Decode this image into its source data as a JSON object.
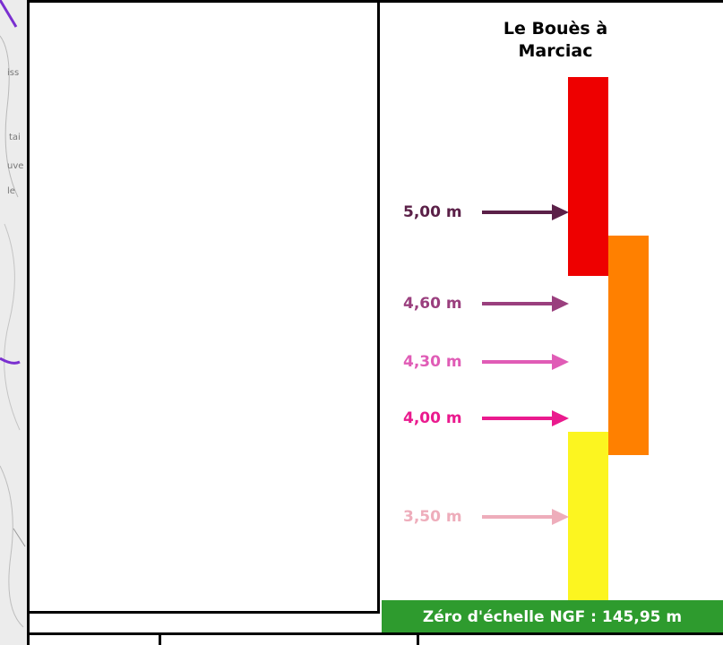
{
  "station": {
    "title": "Le Bouès à\nMarciac"
  },
  "levels": [
    {
      "label": "5,00 m",
      "color": "#5b2048"
    },
    {
      "label": "4,60 m",
      "color": "#9a3f7e"
    },
    {
      "label": "4,30 m",
      "color": "#e05cb6"
    },
    {
      "label": "4,00 m",
      "color": "#ea1a8e"
    },
    {
      "label": "3,50 m",
      "color": "#eeadbb"
    }
  ],
  "vigilance_bars": [
    {
      "name": "red",
      "color": "#ee0000"
    },
    {
      "name": "orange",
      "color": "#ff8000"
    },
    {
      "name": "yellow",
      "color": "#fcf520"
    }
  ],
  "zero_banner": {
    "text": "Zéro d'échelle NGF : 145,95 m",
    "color": "#2e9b2e"
  },
  "map_labels": [
    "iss",
    "tai",
    "uve",
    "le"
  ]
}
